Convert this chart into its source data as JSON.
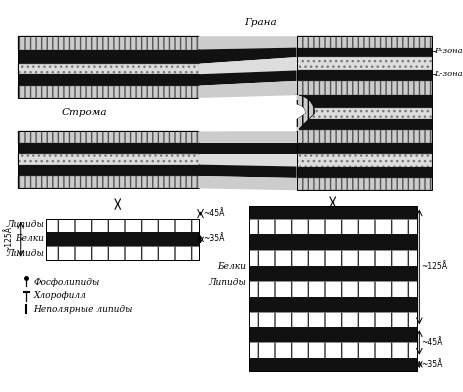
{
  "title_grana": "Грана",
  "label_stroma": "Строма",
  "label_p_zone": "Р-зона",
  "label_l_zone": "L-зона",
  "label_lipidy": "Липиды",
  "label_belki": "Белки",
  "label_belki2": "Белки",
  "label_lipidy2": "Липиды",
  "legend_phospholipids": "Фосфолипиды",
  "legend_chlorophyll": "Хлорофилл",
  "legend_nonpolar": "Неполярные липиды",
  "meas_45": "~45Å",
  "meas_35": "~35Å",
  "meas_125": "~125Å",
  "meas_45b": "~45Å",
  "meas_35b": "~35Å",
  "meas_125b": "~125Å",
  "bg_color": "#ffffff"
}
